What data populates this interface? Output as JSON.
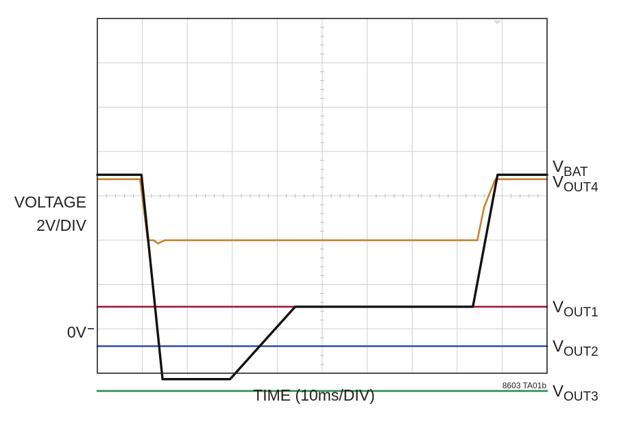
{
  "chart_data": {
    "type": "line",
    "title": "",
    "xlabel": "TIME (10ms/DIV)",
    "ylabel_line1": "VOLTAGE",
    "ylabel_line2": "2V/DIV",
    "zero_marker": "0V",
    "figure_id": "8603 TA01b",
    "grid": true,
    "divisions": {
      "x": 10,
      "y": 8
    },
    "series": [
      {
        "name_main": "V",
        "name_sub": "BAT",
        "name_suffix": "",
        "color": "#111111",
        "width": 3.4,
        "points": [
          [
            0,
            6.95
          ],
          [
            0.98,
            6.95
          ],
          [
            1.45,
            -2.27
          ],
          [
            2.95,
            -2.27
          ],
          [
            4.4,
            1.0
          ],
          [
            8.35,
            1.0
          ],
          [
            8.9,
            6.95
          ],
          [
            10,
            6.95
          ]
        ]
      },
      {
        "name_main": "V",
        "name_sub": "OUT",
        "name_suffix": "4",
        "color": "#c8822e",
        "width": 2.6,
        "points": [
          [
            0,
            6.75
          ],
          [
            0.95,
            6.75
          ],
          [
            1.12,
            4.0
          ],
          [
            1.25,
            4.0
          ],
          [
            1.35,
            3.85
          ],
          [
            1.5,
            4.0
          ],
          [
            8.45,
            4.0
          ],
          [
            8.6,
            5.5
          ],
          [
            8.85,
            6.75
          ],
          [
            10,
            6.75
          ]
        ]
      },
      {
        "name_main": "V",
        "name_sub": "OUT",
        "name_suffix": "1",
        "color": "#a3172f",
        "width": 2.6,
        "points": [
          [
            0,
            1.0
          ],
          [
            10,
            1.0
          ]
        ]
      },
      {
        "name_main": "V",
        "name_sub": "OUT",
        "name_suffix": "2",
        "color": "#2b4fa6",
        "width": 2.6,
        "points": [
          [
            0,
            -0.78
          ],
          [
            10,
            -0.78
          ]
        ]
      },
      {
        "name_main": "V",
        "name_sub": "OUT",
        "name_suffix": "3",
        "color": "#2e8a4e",
        "width": 2.6,
        "points": [
          [
            0,
            -2.8
          ],
          [
            10,
            -2.8
          ]
        ]
      }
    ]
  }
}
